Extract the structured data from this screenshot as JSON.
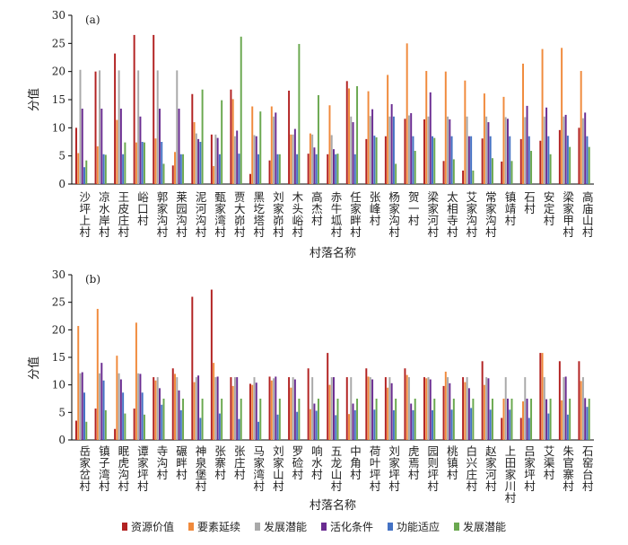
{
  "colors": [
    "#b22222",
    "#f08a3c",
    "#a9a9a9",
    "#6a2c91",
    "#4472c4",
    "#6aa84f"
  ],
  "series_names": [
    "资源价值",
    "要素延续",
    "发展潜能",
    "活化条件",
    "功能适应",
    "发展潜能"
  ],
  "chart_data": [
    {
      "type": "bar",
      "panel_label": "(a)",
      "ylabel": "分值",
      "xlabel": "村落名称",
      "ylim": [
        0,
        30
      ],
      "yticks": [
        0,
        5,
        10,
        15,
        20,
        25,
        30
      ],
      "categories": [
        "沙坪上村",
        "凉水岸村",
        "王皮庄村",
        "峪口村",
        "郭家沟村",
        "莱园沟村",
        "泥河沟村",
        "甄家湾村",
        "贾大峁村",
        "黑圪塔村",
        "刘家峁村",
        "木头峪村",
        "高杰村",
        "赤牛坬村",
        "任家畔村",
        "张峰村",
        "杨家沟村",
        "贺一村",
        "梁家河村",
        "太相寺村",
        "艾家沟村",
        "常家沟村",
        "镇靖村",
        "石村",
        "安定村",
        "梁家甲村",
        "高庙山村"
      ],
      "series": [
        {
          "name": "资源价值",
          "values": [
            10.0,
            20.0,
            23.2,
            26.5,
            26.5,
            3.3,
            16.0,
            8.8,
            16.8,
            1.8,
            4.2,
            16.6,
            5.4,
            5.3,
            18.3,
            8.0,
            8.5,
            11.6,
            11.5,
            4.1,
            2.4,
            8.1,
            4.0,
            8.0,
            7.7,
            9.6,
            10.0
          ]
        },
        {
          "name": "要素延续",
          "values": [
            5.5,
            6.7,
            11.4,
            7.4,
            8.1,
            5.7,
            11.0,
            3.2,
            15.1,
            13.8,
            13.8,
            8.8,
            9.0,
            14.0,
            17.0,
            16.5,
            19.4,
            25.0,
            20.1,
            20.0,
            18.4,
            16.1,
            15.5,
            21.4,
            24.0,
            24.2,
            20.1
          ]
        },
        {
          "name": "发展潜能",
          "values": [
            20.3,
            20.2,
            20.2,
            20.2,
            20.2,
            20.2,
            9.0,
            8.8,
            8.5,
            8.7,
            12.0,
            8.8,
            8.8,
            8.7,
            12.0,
            12.1,
            12.0,
            12.2,
            12.0,
            12.0,
            12.0,
            12.0,
            11.9,
            11.9,
            12.0,
            12.0,
            11.7
          ]
        },
        {
          "name": "活化条件",
          "values": [
            13.4,
            13.4,
            13.4,
            12.0,
            13.4,
            13.4,
            8.0,
            8.2,
            9.5,
            8.5,
            12.7,
            9.8,
            6.5,
            6.2,
            11.0,
            13.3,
            14.2,
            12.6,
            16.3,
            11.5,
            8.5,
            11.0,
            11.6,
            13.9,
            13.6,
            12.3,
            12.7
          ]
        },
        {
          "name": "功能适应",
          "values": [
            3.0,
            5.3,
            5.3,
            7.5,
            7.5,
            5.3,
            7.5,
            5.3,
            5.4,
            5.3,
            5.3,
            5.3,
            5.3,
            5.3,
            5.3,
            8.6,
            12.0,
            8.5,
            8.5,
            8.5,
            8.5,
            8.5,
            8.5,
            8.5,
            8.5,
            8.6,
            8.5
          ]
        },
        {
          "name": "发展潜能",
          "values": [
            4.2,
            5.2,
            7.4,
            7.4,
            3.6,
            5.3,
            16.8,
            14.9,
            26.2,
            12.9,
            5.3,
            24.9,
            15.8,
            5.4,
            17.4,
            8.3,
            3.6,
            5.9,
            8.2,
            4.4,
            2.4,
            4.6,
            4.1,
            5.9,
            5.3,
            6.6,
            6.6
          ]
        }
      ]
    },
    {
      "type": "bar",
      "panel_label": "(b)",
      "ylabel": "分值",
      "xlabel": "村落名称",
      "ylim": [
        0,
        30
      ],
      "yticks": [
        0,
        5,
        10,
        15,
        20,
        25,
        30
      ],
      "categories": [
        "岳家岔村",
        "镇子湾村",
        "眠虎沟村",
        "谭家坪村",
        "寺沟村",
        "碾畔村",
        "神泉堡村",
        "张寨村",
        "张庄村",
        "马家湾村",
        "刘家山村",
        "罗硷村",
        "响水村",
        "五龙山村",
        "中角村",
        "荷叶坪村",
        "刘家坪村",
        "虎焉村",
        "园则坪村",
        "桃镇村",
        "白兴庄村",
        "赵家河村",
        "上田家川村",
        "吕家坪村",
        "艾渠村",
        "朱官寨村",
        "石窑台村"
      ],
      "series": [
        {
          "name": "资源价值",
          "values": [
            3.5,
            5.7,
            2.0,
            5.7,
            11.4,
            13.0,
            26.0,
            27.3,
            11.4,
            10.2,
            11.5,
            11.4,
            13.0,
            15.8,
            11.4,
            13.0,
            11.4,
            13.0,
            11.4,
            9.8,
            11.4,
            14.3,
            4.0,
            4.0,
            15.8,
            14.3,
            14.3
          ]
        },
        {
          "name": "要素延续",
          "values": [
            20.7,
            23.8,
            15.3,
            21.3,
            10.8,
            12.0,
            10.5,
            14.0,
            9.8,
            10.0,
            10.8,
            9.5,
            5.6,
            10.0,
            4.7,
            11.5,
            9.5,
            11.8,
            11.2,
            12.4,
            10.5,
            10.0,
            7.5,
            7.0,
            15.8,
            7.2,
            10.7
          ]
        },
        {
          "name": "发展潜能",
          "values": [
            12.1,
            12.1,
            12.1,
            12.1,
            11.4,
            11.4,
            11.4,
            11.4,
            11.4,
            11.4,
            11.2,
            11.4,
            11.4,
            11.4,
            11.4,
            11.4,
            11.4,
            11.4,
            11.4,
            11.4,
            11.4,
            11.4,
            11.4,
            11.4,
            11.4,
            11.4,
            11.4
          ]
        },
        {
          "name": "活化条件",
          "values": [
            12.3,
            14.0,
            11.0,
            12.0,
            9.4,
            9.0,
            11.7,
            11.5,
            11.4,
            10.4,
            11.5,
            11.0,
            6.6,
            11.4,
            6.6,
            11.0,
            10.3,
            6.6,
            11.0,
            10.3,
            9.4,
            11.2,
            7.5,
            7.5,
            7.4,
            11.5,
            7.6
          ]
        },
        {
          "name": "功能适应",
          "values": [
            8.6,
            10.8,
            8.6,
            8.6,
            6.4,
            5.4,
            4.0,
            4.8,
            3.8,
            3.3,
            4.6,
            5.1,
            5.3,
            4.5,
            5.4,
            5.5,
            5.4,
            5.4,
            5.4,
            5.5,
            5.8,
            5.5,
            5.5,
            4.0,
            4.8,
            4.6,
            6.0
          ]
        },
        {
          "name": "发展潜能",
          "values": [
            3.3,
            5.4,
            4.8,
            4.6,
            7.5,
            7.5,
            7.5,
            7.5,
            7.5,
            7.5,
            7.5,
            7.5,
            7.5,
            7.5,
            7.5,
            7.5,
            7.5,
            7.5,
            7.5,
            7.5,
            7.5,
            7.5,
            7.5,
            7.5,
            7.5,
            7.5,
            7.5
          ]
        },
        {
          "name": "发展潜能",
          "values": [
            0,
            0,
            0,
            0,
            0,
            0,
            0,
            0,
            0,
            0,
            0,
            0,
            0,
            0,
            0,
            0,
            0,
            0,
            0,
            0,
            0,
            0,
            0,
            0,
            0,
            0,
            0
          ]
        }
      ]
    }
  ]
}
